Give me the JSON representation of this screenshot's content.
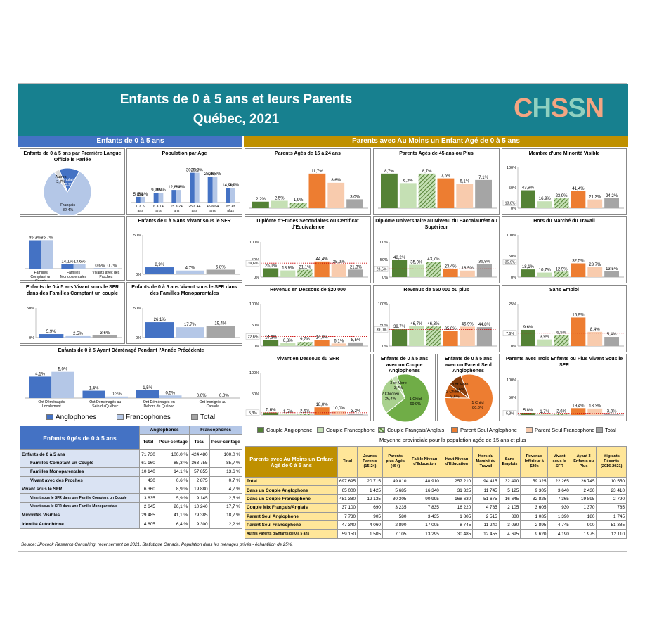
{
  "header": {
    "title": "Enfants de 0 à 5 ans et leurs Parents",
    "subtitle": "Québec, 2021",
    "logo": "CHSSN"
  },
  "colors": {
    "teal": "#17808f",
    "blue_dark": "#4472c4",
    "blue_light": "#b4c7e7",
    "gold": "#bf9000",
    "green_dark": "#548235",
    "green_light": "#c5e0b4",
    "orange_dark": "#ed7d31",
    "orange_light": "#f8cbad",
    "grey": "#a5a5a5"
  },
  "left_header": "Enfants de 0 à 5 ans",
  "right_header": "Parents avec Au Moins un Enfant Agé de 0 à 5 ans",
  "left_legend": {
    "a": "Anglophones",
    "f": "Francophones",
    "t": "Total"
  },
  "right_legend": [
    "Couple Anglophone",
    "Couple Francophone",
    "Couple Français/Anglais",
    "Parent Seul Anglophone",
    "Parent Seul Francophone",
    "Total"
  ],
  "avg_note": "Moyenne provinciale pour la population agée de 15 ans et plus",
  "chart_data": [
    {
      "id": "langue",
      "type": "pie",
      "title": "Enfants de 0 à 5 ans par Première Langue Officielle Parlée",
      "slices": [
        {
          "label": "Anglais",
          "value": 13.9,
          "text": "13,9%"
        },
        {
          "label": "Français",
          "value": 82.4,
          "text": "82,4%"
        },
        {
          "label": "Autres",
          "value": 3.7,
          "text": "3,7%"
        }
      ]
    },
    {
      "id": "age",
      "type": "bar",
      "title": "Population par Age",
      "categories": [
        "0 à 5 ans",
        "6 à 14 ans",
        "15 à 24 ans",
        "25 à 44 ans",
        "45 à 64 ans",
        "65 et plus"
      ],
      "series": [
        {
          "name": "Anglophones",
          "values": [
            5.8,
            9.9,
            12.8,
            30.3,
            26.4,
            14.9
          ]
        },
        {
          "name": "Francophones",
          "values": [
            5.8,
            9.9,
            12.8,
            30.3,
            26.4,
            14.9
          ]
        }
      ],
      "labels": [
        "5,8%",
        "9,9%",
        "12,8%",
        "30,3%",
        "26,4%",
        "14,9%"
      ]
    },
    {
      "id": "famille",
      "type": "bar",
      "title": "",
      "categories": [
        "Familles Comptant un Couple",
        "Familles Monoparentales",
        "Vivants avec des Proches"
      ],
      "series": [
        {
          "name": "Anglophones",
          "values": [
            85.3,
            14.1,
            0.6
          ],
          "labels": [
            "85,3%",
            "14,1%",
            "0,6%"
          ]
        },
        {
          "name": "Francophones",
          "values": [
            85.7,
            13.6,
            0.7
          ],
          "labels": [
            "85,7%",
            "13,6%",
            "0,7%"
          ]
        }
      ]
    },
    {
      "id": "sfr",
      "type": "bar",
      "title": "Enfants de 0 à 5 ans Vivant sous le SFR",
      "categories": [
        "Anglophones",
        "Francophones",
        "Total"
      ],
      "values": [
        8.9,
        4.7,
        5.8
      ],
      "labels": [
        "8,9%",
        "4,7%",
        "5,8%"
      ],
      "yaxis": [
        "50%",
        "0%"
      ]
    },
    {
      "id": "sfr_couple",
      "type": "bar",
      "title": "Enfants de 0 à 5 ans Vivant sous le SFR dans des Familles Comptant un couple",
      "categories": [
        "Anglophones",
        "Francophones",
        "Total"
      ],
      "values": [
        5.9,
        2.5,
        3.6
      ],
      "labels": [
        "5,9%",
        "2,5%",
        "3,6%"
      ],
      "yaxis": [
        "50%",
        "0%"
      ]
    },
    {
      "id": "sfr_mono",
      "type": "bar",
      "title": "Enfants de 0 à 5 ans Vivant sous le SFR dans des Familles Monoparentales",
      "categories": [
        "Anglophones",
        "Francophones",
        "Total"
      ],
      "values": [
        26.1,
        17.7,
        19.4
      ],
      "labels": [
        "26,1%",
        "17,7%",
        "19,4%"
      ],
      "yaxis": [
        "50%",
        "0%"
      ]
    },
    {
      "id": "demenage",
      "type": "bar",
      "title": "Enfants de 0 à 5 Ayant Déménagé Pendant l'Année Précédente",
      "categories": [
        "Ont Déménagés Localement",
        "Ont Déménagés au Sein du Québec",
        "Ont Déménagés en Dehors du Québec",
        "Ont Immigrés au Canada"
      ],
      "series": [
        {
          "name": "Anglophones",
          "values": [
            4.1,
            1.4,
            1.5,
            0.0
          ],
          "labels": [
            "4,1%",
            "1,4%",
            "1,5%",
            "0,0%"
          ]
        },
        {
          "name": "Francophones",
          "values": [
            5.0,
            0.3,
            0.5,
            0.0
          ],
          "labels": [
            "5,0%",
            "0,3%",
            "0,5%",
            "0,0%"
          ]
        }
      ]
    },
    {
      "id": "p1524",
      "type": "bar",
      "title": "Parents Agés de 15 à 24 ans",
      "values": [
        2.2,
        2.5,
        1.9,
        11.7,
        8.6,
        3.0
      ],
      "labels": [
        "2,2%",
        "2,5%",
        "1,9%",
        "11,7%",
        "8,6%",
        "3,0%"
      ]
    },
    {
      "id": "p45",
      "type": "bar",
      "title": "Parents Agés de 45 ans ou Plus",
      "values": [
        8.7,
        6.3,
        8.7,
        7.5,
        6.1,
        7.1
      ],
      "labels": [
        "8,7%",
        "6,3%",
        "8,7%",
        "7,5%",
        "6,1%",
        "7,1%"
      ]
    },
    {
      "id": "minorite",
      "type": "bar",
      "title": "Membre d'une Minorité Visible",
      "values": [
        43.9,
        16.9,
        23.9,
        41.4,
        21.3,
        24.2
      ],
      "labels": [
        "43,9%",
        "16,9%",
        "23,9%",
        "41,4%",
        "21,3%",
        "24,2%"
      ],
      "avg": "13,0%",
      "yaxis": [
        "100%",
        "50%",
        "0%"
      ]
    },
    {
      "id": "dec",
      "type": "bar",
      "title": "Diplôme d'Etudes Secondaires ou Certificat d'Equivalence",
      "values": [
        25.1,
        18.9,
        21.1,
        44.4,
        35.9,
        21.3
      ],
      "labels": [
        "25,1%",
        "18,9%",
        "21,1%",
        "44,4%",
        "35,9%",
        "21,3%"
      ],
      "avg": "39,6%",
      "yaxis": [
        "100%",
        "50%",
        "0%"
      ]
    },
    {
      "id": "bac",
      "type": "bar",
      "title": "Diplôme Universitaire au Niveau du Baccalauréat ou Supérieur",
      "values": [
        48.2,
        35.0,
        43.7,
        23.4,
        18.5,
        36.9
      ],
      "labels": [
        "48,2%",
        "35,0%",
        "43,7%",
        "23,4%",
        "18,5%",
        "36,9%"
      ],
      "avg": "23,5%",
      "yaxis": [
        "100%",
        "50%",
        "0%"
      ]
    },
    {
      "id": "hors",
      "type": "bar",
      "title": "Hors du Marché du Travail",
      "values": [
        18.1,
        10.7,
        12.9,
        32.5,
        23.7,
        13.5
      ],
      "labels": [
        "18,1%",
        "10,7%",
        "12,9%",
        "32,5%",
        "23,7%",
        "13,5%"
      ],
      "avg": "35,9%",
      "yaxis": [
        "100%",
        "50%",
        "0%"
      ]
    },
    {
      "id": "rev20",
      "type": "bar",
      "title": "Revenus en Dessous de $20 000",
      "values": [
        14.3,
        6.8,
        9.7,
        14.0,
        6.1,
        8.5
      ],
      "labels": [
        "14,3%",
        "6,8%",
        "9,7%",
        "14,0%",
        "6,1%",
        "8,5%"
      ],
      "avg": "22,6%",
      "yaxis": [
        "100%",
        "50%",
        "0%"
      ]
    },
    {
      "id": "rev50",
      "type": "bar",
      "title": "Revenus de $50 000 ou plus",
      "values": [
        39.7,
        46.7,
        46.3,
        35.0,
        45.9,
        44.8
      ],
      "labels": [
        "39,7%",
        "46,7%",
        "46,3%",
        "35,0%",
        "45,9%",
        "44,8%"
      ],
      "avg": "39,0%",
      "yaxis": [
        "100%",
        "50%",
        "0%"
      ]
    },
    {
      "id": "sansemploi",
      "type": "bar",
      "title": "Sans Emploi",
      "values": [
        9.6,
        3.9,
        6.5,
        16.9,
        8.4,
        5.4
      ],
      "labels": [
        "9,6%",
        "3,9%",
        "6,5%",
        "16,9%",
        "8,4%",
        "5,4%"
      ],
      "avg": "7,6%",
      "yaxis": [
        "25%",
        "0%"
      ]
    },
    {
      "id": "sfrp",
      "type": "bar",
      "title": "Vivant en Dessous du SFR",
      "values": [
        5.6,
        1.5,
        2.5,
        18.0,
        10.0,
        3.2
      ],
      "labels": [
        "5,6%",
        "1,5%",
        "2,5%",
        "18,0%",
        "10,0%",
        "3,2%"
      ],
      "avg": "5,3%",
      "yaxis": [
        "100%",
        "50%",
        "0%"
      ]
    },
    {
      "id": "pie_couple",
      "type": "pie",
      "title": "Enfants de 0 à 5 ans avec un Couple Anglophones",
      "slices": [
        {
          "label": "1 Child",
          "value": 69.9,
          "text": "69,9%"
        },
        {
          "label": "2 Children",
          "value": 26.4,
          "text": "26,4%"
        },
        {
          "label": "3 or More",
          "value": 3.7,
          "text": "3,7%"
        }
      ]
    },
    {
      "id": "pie_seul",
      "type": "pie",
      "title": "Enfants de 0 à 5 ans avec un Parent Seul Anglophones",
      "slices": [
        {
          "label": "1 Child",
          "value": 80.8,
          "text": "80,8%"
        },
        {
          "label": "2 Children",
          "value": 9.6,
          "text": "9,6%"
        },
        {
          "label": "3 or More",
          "value": 9.6,
          "text": "9,6%"
        }
      ]
    },
    {
      "id": "trois",
      "type": "bar",
      "title": "Parents avec Trois Enfants ou Plus Vivant Sous le SFR",
      "values": [
        5.8,
        1.7,
        2.6,
        19.4,
        18.3,
        3.3
      ],
      "labels": [
        "5,8%",
        "1,7%",
        "2,6%",
        "19,4%",
        "18,3%",
        "3,3%"
      ],
      "avg": "5,3%",
      "yaxis": [
        "100%",
        "50%",
        "0%"
      ]
    }
  ],
  "left_table": {
    "title": "Enfants Agés de 0 à 5 ans",
    "groups": [
      "Anglophones",
      "Francophones"
    ],
    "cols": [
      "Total",
      "Pour-centage",
      "Total",
      "Pour-centage"
    ],
    "rows": [
      [
        "Enfants de 0 à 5 ans",
        "71 730",
        "100,0 %",
        "424 480",
        "100,0 %"
      ],
      [
        "Familles Comptant un Couple",
        "61 160",
        "85,3 %",
        "363 755",
        "85,7 %"
      ],
      [
        "Familles Monoparentales",
        "10 140",
        "14,1 %",
        "57 855",
        "13,6 %"
      ],
      [
        "Vivant avec des Proches",
        "430",
        "0,6 %",
        "2 875",
        "0,7 %"
      ],
      [
        "Vivant sous le SFR",
        "6 360",
        "8,9 %",
        "19 880",
        "4,7 %"
      ],
      [
        "Vivant sous le SFR dans une Famille Comptant un Couple",
        "3 635",
        "5,9 %",
        "9 145",
        "2,5 %"
      ],
      [
        "Vivant sous le SFR dans une Famille Monoparentale",
        "2 645",
        "26,1 %",
        "10 240",
        "17,7 %"
      ],
      [
        "Minorités Visibles",
        "29 485",
        "41,1 %",
        "79 385",
        "18,7 %"
      ],
      [
        "Identité Autochtone",
        "4 605",
        "6,4 %",
        "9 300",
        "2,2 %"
      ]
    ]
  },
  "right_table": {
    "title": "Parents avec Au Moins un Enfant Agé de 0 à 5 ans",
    "cols": [
      "Total",
      "Jeunes Parents (15-24)",
      "Parents plus Agés (45+)",
      "Faible Niveau d'Education",
      "Haut Niveau d'Education",
      "Hors du Marché du Travail",
      "Sans Emplois",
      "Revenus Inférieur à $20k",
      "Vivant sous le SFR",
      "Ayant 3 Enfants ou Plus",
      "Migrants Récents (2016-2021)"
    ],
    "rows": [
      [
        "Total",
        "697 695",
        "20 715",
        "49 810",
        "148 910",
        "257 210",
        "94 415",
        "32 490",
        "59 325",
        "22 265",
        "26 745",
        "10 550"
      ],
      [
        "Dans un Couple Anglophone",
        "65 000",
        "1 425",
        "5 685",
        "16 340",
        "31 325",
        "11 745",
        "5 125",
        "9 305",
        "3 640",
        "2 430",
        "23 410"
      ],
      [
        "Dans un Couple Francophone",
        "481 380",
        "12 135",
        "30 305",
        "90 995",
        "168 630",
        "51 675",
        "16 645",
        "32 825",
        "7 365",
        "19 895",
        "2 790"
      ],
      [
        "Couple Mix Français/Anglais",
        "37 100",
        "690",
        "3 235",
        "7 835",
        "16 220",
        "4 785",
        "2 105",
        "3 605",
        "930",
        "1 370",
        "785"
      ],
      [
        "Parent Seul Anglophone",
        "7 730",
        "905",
        "580",
        "3 435",
        "1 805",
        "2 515",
        "880",
        "1 085",
        "1 390",
        "180",
        "1 745"
      ],
      [
        "Parent Seul Francophone",
        "47 340",
        "4 060",
        "2 890",
        "17 005",
        "8 745",
        "11 240",
        "3 030",
        "2 895",
        "4 745",
        "900",
        "51 385"
      ],
      [
        "Autres Parents d'Enfants de 0 à 5 ans",
        "59 150",
        "1 505",
        "7 105",
        "13 295",
        "30 485",
        "12 455",
        "4 695",
        "9 620",
        "4 190",
        "1 975",
        "12 110"
      ]
    ]
  },
  "source": "Source: JPocock Research Consulting, recensement de 2021, Statistique Canada. Population dans les ménages privés - échantillon de 25%."
}
